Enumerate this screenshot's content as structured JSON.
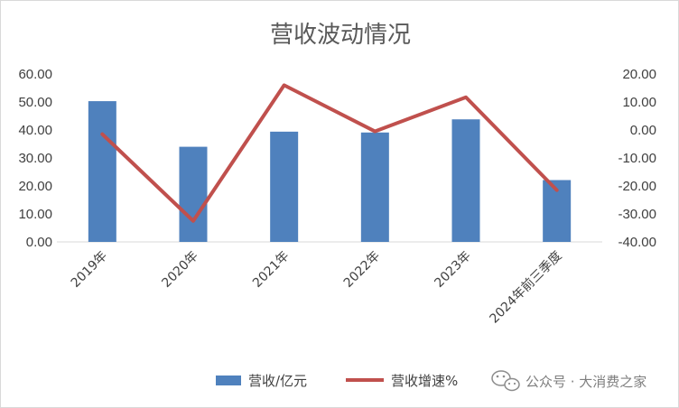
{
  "chart_data": {
    "type": "bar",
    "title": "营收波动情况",
    "categories": [
      "2019年",
      "2020年",
      "2021年",
      "2022年",
      "2023年",
      "2024年前三季度"
    ],
    "series": [
      {
        "name": "营收/亿元",
        "kind": "bar",
        "axis": "left",
        "color": "#4f81bd",
        "values": [
          50.3,
          34.0,
          39.4,
          39.1,
          43.8,
          22.1
        ]
      },
      {
        "name": "营收增速%",
        "kind": "line",
        "axis": "right",
        "color": "#c0504d",
        "values": [
          -1.5,
          -32.5,
          16.0,
          -0.5,
          11.7,
          -21.5
        ]
      }
    ],
    "y_left": {
      "min": 0,
      "max": 60,
      "ticks": [
        "0.00",
        "10.00",
        "20.00",
        "30.00",
        "40.00",
        "50.00",
        "60.00"
      ]
    },
    "y_right": {
      "min": -40,
      "max": 20,
      "ticks": [
        "-40.00",
        "-30.00",
        "-20.00",
        "-10.00",
        "0.00",
        "10.00",
        "20.00"
      ]
    },
    "grid": false,
    "legend_position": "bottom"
  },
  "watermark": {
    "text": "公众号 · 大消费之家",
    "icon": "wechat-icon"
  }
}
